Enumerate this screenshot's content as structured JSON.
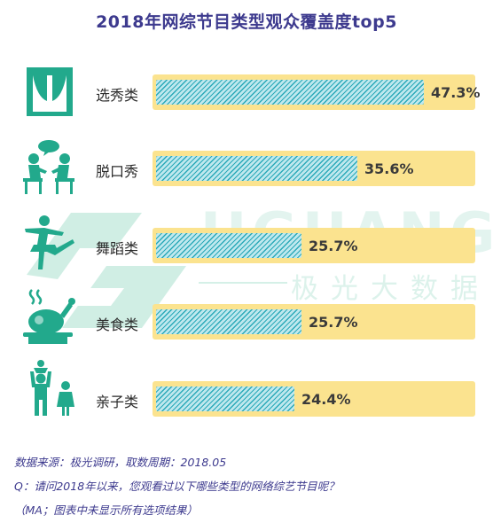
{
  "title": "2018年网综节目类型观众覆盖度top5",
  "watermark": {
    "brand_en": "JIGUANG",
    "brand_cn": "极光大数据"
  },
  "colors": {
    "title": "#3d3a8e",
    "bar_fill": "#2aa9b8",
    "bar_light": "#bfe8ee",
    "track": "#fbe38f",
    "icon": "#22a98c",
    "notes": "#3d3a8e"
  },
  "chart_data": {
    "type": "bar",
    "orientation": "horizontal",
    "title": "2018年网综节目类型观众覆盖度top5",
    "categories": [
      "选秀类",
      "脱口秀",
      "舞蹈类",
      "美食类",
      "亲子类"
    ],
    "values": [
      47.3,
      35.6,
      25.7,
      25.7,
      24.4
    ],
    "value_labels": [
      "47.3%",
      "35.6%",
      "25.7%",
      "25.7%",
      "24.4%"
    ],
    "icons": [
      "stage-curtain-icon",
      "talk-show-icon",
      "dancer-icon",
      "food-dish-icon",
      "parent-child-icon"
    ],
    "xlim": [
      0,
      47.3
    ],
    "unit": "%",
    "grid": false,
    "legend": "none"
  },
  "notes": {
    "source": "数据来源：极光调研，取数周期：2018.05",
    "question": "Q：请问2018年以来，您观看过以下哪些类型的网络综艺节目呢？",
    "remark": "（MA；图表中未显示所有选项结果）"
  }
}
